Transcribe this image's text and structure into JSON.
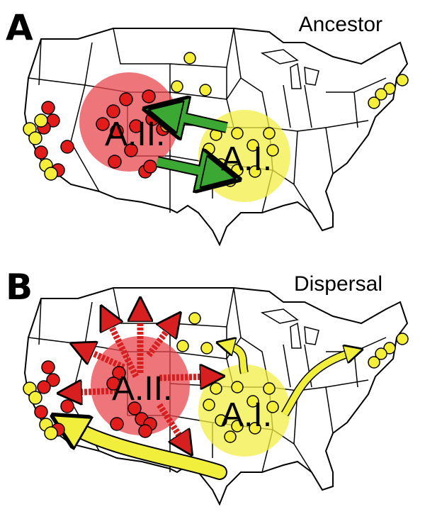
{
  "panels": [
    {
      "letter": "A",
      "title": "Ancestor",
      "zones": [
        {
          "label": "A.II.",
          "color": "#e8484f"
        },
        {
          "label": "A.I.",
          "color": "#f3ee44"
        }
      ]
    },
    {
      "letter": "B",
      "title": "Dispersal",
      "zones": [
        {
          "label": "A.II.",
          "color": "#e8484f"
        },
        {
          "label": "A.I.",
          "color": "#f3ee44"
        }
      ]
    }
  ],
  "colors": {
    "red_site": "#e21b1b",
    "yellow_site": "#f5ef3a",
    "green_arrow": "#3aa832",
    "red_arrow": "#d81f1f",
    "yellow_arrow": "#f2ee3c"
  }
}
